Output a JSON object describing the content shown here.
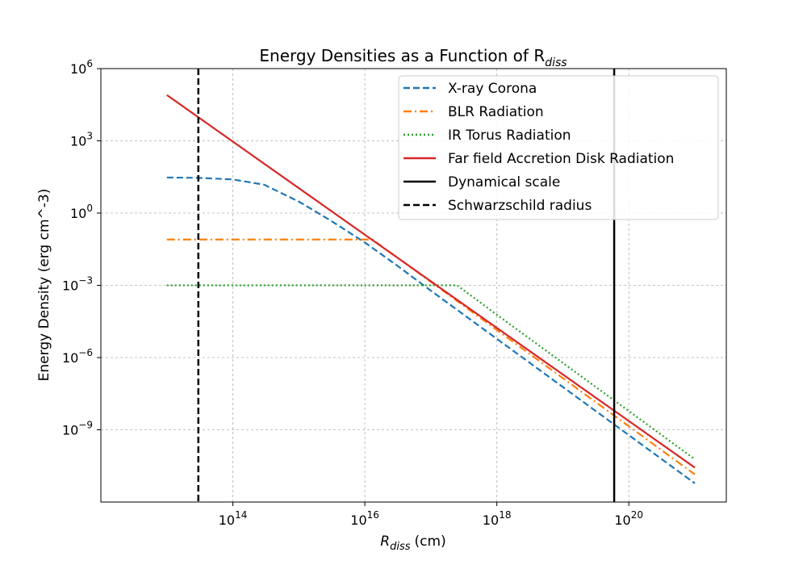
{
  "chart_data": {
    "type": "line",
    "title": "Energy Densities as a Function of R",
    "title_sub": "diss",
    "xlabel": "R",
    "xlabel_sub": "diss",
    "xlabel_unit": "(cm)",
    "ylabel": "Energy Density (erg cm^-3)",
    "x_scale": "log",
    "y_scale": "log",
    "xlim": [
      1000000000000.0,
      3e+21
    ],
    "ylim": [
      1e-12,
      1000000.0
    ],
    "grid": true,
    "legend_position": "top-right",
    "x_ticks": [
      {
        "value": 100000000000000.0,
        "base": "10",
        "exp": "14"
      },
      {
        "value": 1e+16,
        "base": "10",
        "exp": "16"
      },
      {
        "value": 1e+18,
        "base": "10",
        "exp": "18"
      },
      {
        "value": 1e+20,
        "base": "10",
        "exp": "20"
      }
    ],
    "y_ticks": [
      {
        "value": 1000000.0,
        "base": "10",
        "exp": "6"
      },
      {
        "value": 1000.0,
        "base": "10",
        "exp": "3"
      },
      {
        "value": 1,
        "base": "10",
        "exp": "0"
      },
      {
        "value": 0.001,
        "base": "10",
        "exp": "−3"
      },
      {
        "value": 1e-06,
        "base": "10",
        "exp": "−6"
      },
      {
        "value": 1e-09,
        "base": "10",
        "exp": "−9"
      }
    ],
    "series": [
      {
        "name": "X-ray Corona",
        "color": "#1f77b4",
        "style": "dashed",
        "x": [
          10000000000000.0,
          30000000000000.0,
          100000000000000.0,
          300000000000000.0,
          1000000000000000.0,
          3000000000000000.0,
          1e+16,
          3e+16,
          1e+17,
          1e+18,
          1e+19,
          1e+20,
          1e+21
        ],
        "y": [
          30,
          29,
          25,
          15,
          3,
          0.5,
          0.06,
          0.007,
          0.0006,
          6e-06,
          6e-08,
          6e-10,
          6e-12
        ]
      },
      {
        "name": "BLR Radiation",
        "color": "#ff7f0e",
        "style": "dashdot",
        "x": [
          10000000000000.0,
          1000000000000000.0,
          1e+16,
          1.3e+16,
          1e+17,
          1e+18,
          1e+19,
          1e+20,
          1e+21
        ],
        "y": [
          0.08,
          0.08,
          0.08,
          0.08,
          0.0014,
          1.4e-05,
          1.4e-07,
          1.4e-09,
          1.4e-11
        ]
      },
      {
        "name": "IR Torus Radiation",
        "color": "#2ca02c",
        "style": "dotted",
        "x": [
          10000000000000.0,
          1000000000000000.0,
          1e+17,
          2.5e+17,
          1e+18,
          1e+19,
          1e+20,
          1e+21
        ],
        "y": [
          0.001,
          0.001,
          0.001,
          0.001,
          6e-05,
          6e-07,
          6e-09,
          6e-11
        ]
      },
      {
        "name": " Far field Accretion Disk Radiation",
        "color": "#d62728",
        "style": "solid",
        "x": [
          10000000000000.0,
          1e+21
        ],
        "y": [
          80000,
          2.7e-11
        ]
      },
      {
        "name": "Dynamical scale",
        "color": "#000000",
        "style": "solid-vertical",
        "x_value": 6e+19
      },
      {
        "name": "Schwarzschild radius",
        "color": "#000000",
        "style": "dashed-vertical",
        "x_value": 30000000000000.0
      }
    ]
  }
}
